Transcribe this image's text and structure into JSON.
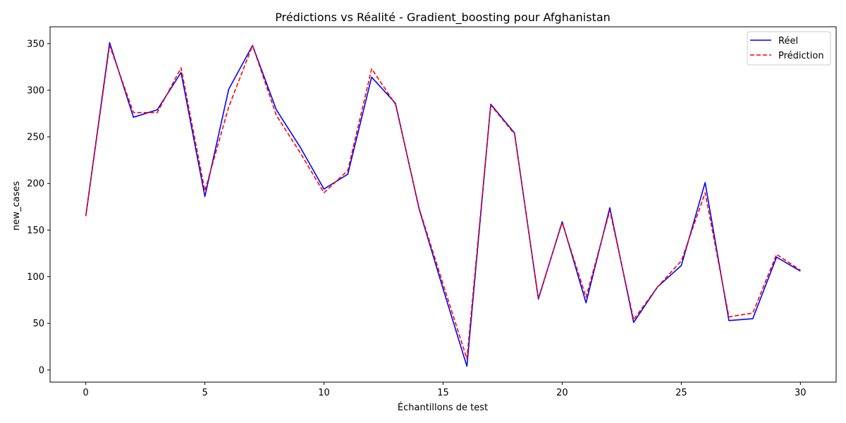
{
  "chart_data": {
    "type": "line",
    "title": "Prédictions vs Réalité - Gradient_boosting pour Afghanistan",
    "xlabel": "Échantillons de test",
    "ylabel": "new_cases",
    "xlim": [
      -1.5,
      31.5
    ],
    "ylim": [
      -13,
      368
    ],
    "xticks": [
      0,
      5,
      10,
      15,
      20,
      25,
      30
    ],
    "yticks": [
      0,
      50,
      100,
      150,
      200,
      250,
      300,
      350
    ],
    "grid": false,
    "legend_position": "top-right",
    "x": [
      0,
      1,
      2,
      3,
      4,
      5,
      6,
      7,
      8,
      9,
      10,
      11,
      12,
      13,
      14,
      15,
      16,
      17,
      18,
      19,
      20,
      21,
      22,
      23,
      24,
      25,
      26,
      27,
      28,
      29,
      30
    ],
    "series": [
      {
        "name": "Réel",
        "color": "#0000ff",
        "style": "solid",
        "values": [
          165,
          351,
          271,
          279,
          319,
          186,
          301,
          348,
          279,
          239,
          194,
          210,
          314,
          286,
          172,
          87,
          4,
          285,
          254,
          76,
          159,
          72,
          174,
          51,
          89,
          112,
          201,
          53,
          55,
          121,
          106
        ]
      },
      {
        "name": "Prédiction",
        "color": "#ff0000",
        "style": "dashed",
        "values": [
          165,
          348,
          276,
          276,
          324,
          192,
          282,
          348,
          273,
          233,
          190,
          214,
          323,
          285,
          173,
          92,
          12,
          284,
          253,
          77,
          158,
          78,
          171,
          54,
          89,
          117,
          190,
          57,
          61,
          124,
          107
        ]
      }
    ]
  }
}
